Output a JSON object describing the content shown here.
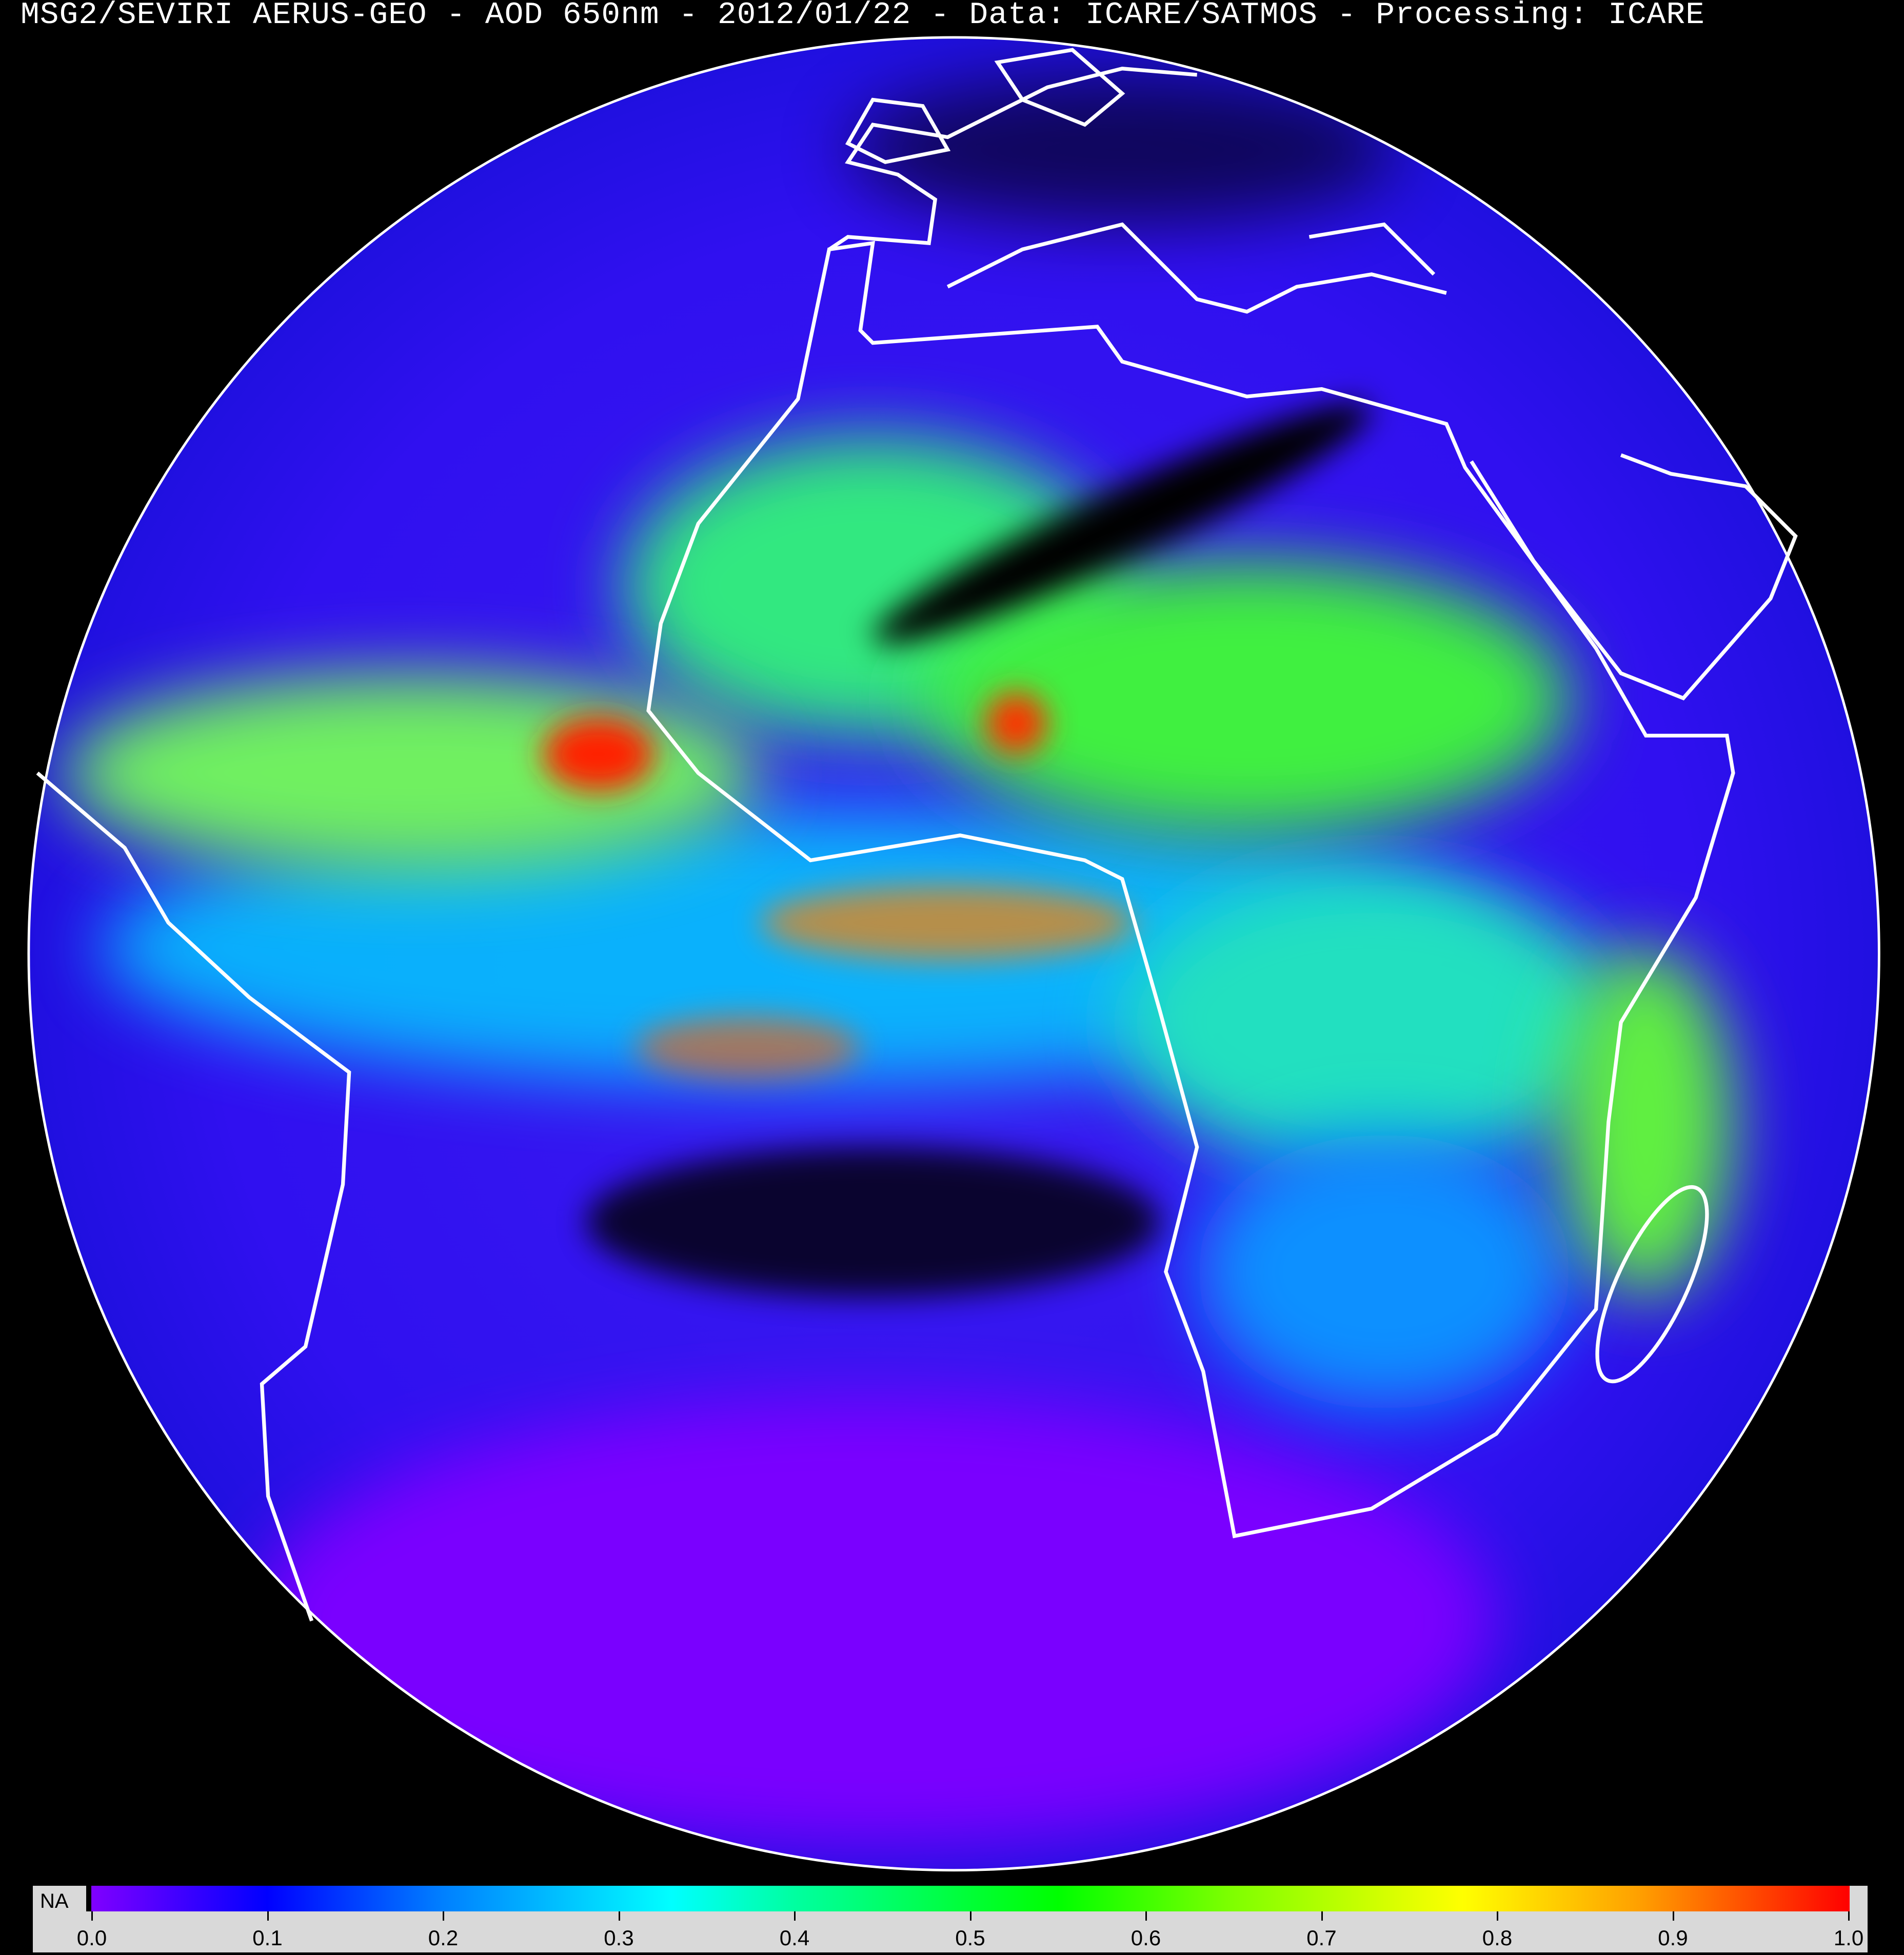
{
  "title": "MSG2/SEVIRI AERUS-GEO - AOD 650nm - 2012/01/22 - Data: ICARE/SATMOS - Processing: ICARE",
  "map": {
    "projection": "geostationary full disk",
    "variable": "aerosol optical depth",
    "coastline_color": "#ffffff",
    "background_color": "#000000"
  },
  "colorbar": {
    "na_label": "NA",
    "na_color": "#000000",
    "range": [
      0.0,
      1.0
    ],
    "ticks": [
      "0.0",
      "0.1",
      "0.2",
      "0.3",
      "0.4",
      "0.5",
      "0.6",
      "0.7",
      "0.8",
      "0.9",
      "1.0"
    ],
    "colors": [
      "#8000ff",
      "#0000ff",
      "#0080ff",
      "#00ffff",
      "#00ff00",
      "#ffff00",
      "#ff0000"
    ]
  }
}
